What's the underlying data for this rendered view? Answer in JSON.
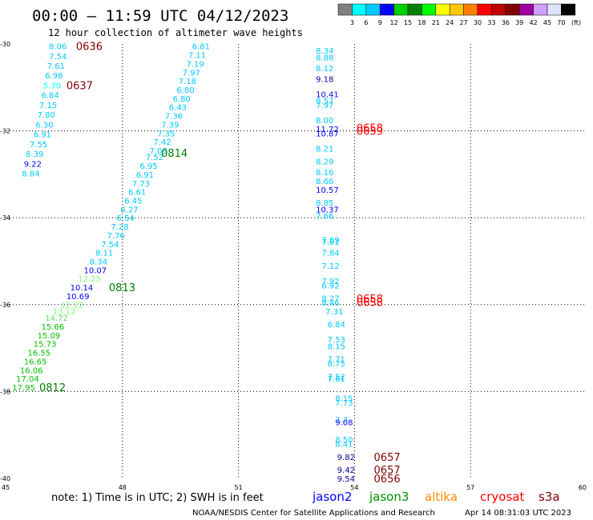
{
  "header": {
    "title": "00:00 – 11:59 UTC 04/12/2023",
    "subtitle": "12 hour collection of altimeter wave heights"
  },
  "legend": {
    "unit": "(ft)",
    "colors": [
      "#808080",
      "#00ffff",
      "#00c8ff",
      "#0000ff",
      "#00d000",
      "#008000",
      "#00ff00",
      "#ffff00",
      "#ffc800",
      "#ff8000",
      "#ff0000",
      "#c00000",
      "#800000",
      "#a000a0",
      "#d0a0ff",
      "#e0e0ff",
      "#000000"
    ],
    "labels": [
      "3",
      "6",
      "9",
      "12",
      "15",
      "18",
      "21",
      "24",
      "27",
      "30",
      "33",
      "36",
      "39",
      "42",
      "45",
      "70"
    ]
  },
  "note": "note:  1) Time is in UTC; 2) SWH is in feet",
  "satellites": [
    {
      "name": "jason2",
      "color": "#0000ff"
    },
    {
      "name": "jason3",
      "color": "#009000"
    },
    {
      "name": "altika",
      "color": "#ff8c00"
    },
    {
      "name": "cryosat",
      "color": "#ff0000"
    },
    {
      "name": "s3a",
      "color": "#800000"
    }
  ],
  "footer": {
    "credit": "NOAA/NESDIS Center for Satellite Applications and Research",
    "timestamp": "Apr 14 08:31:03 UTC 2023"
  },
  "chart_data": {
    "type": "scatter",
    "title": "00:00 – 11:59 UTC 04/12/2023",
    "xlim": [
      45,
      60
    ],
    "ylim": [
      -40,
      -30
    ],
    "xticks": [
      45,
      48,
      51,
      54,
      57,
      60
    ],
    "yticks": [
      -30,
      -32,
      -34,
      -36,
      -38,
      -40
    ],
    "grid": true,
    "points": [
      {
        "x": 46.1,
        "y": -30.05,
        "v": "8.06",
        "c": "#00c8ff"
      },
      {
        "x": 46.1,
        "y": -30.28,
        "v": "7.54",
        "c": "#00c8ff"
      },
      {
        "x": 46.05,
        "y": -30.5,
        "v": "7.61",
        "c": "#00c8ff"
      },
      {
        "x": 46.0,
        "y": -30.72,
        "v": "6.98",
        "c": "#00c8ff"
      },
      {
        "x": 45.95,
        "y": -30.95,
        "v": "5.70",
        "c": "#00ffff"
      },
      {
        "x": 45.9,
        "y": -31.17,
        "v": "6.84",
        "c": "#00c8ff"
      },
      {
        "x": 45.85,
        "y": -31.4,
        "v": "7.15",
        "c": "#00c8ff"
      },
      {
        "x": 45.8,
        "y": -31.62,
        "v": "7.80",
        "c": "#00c8ff"
      },
      {
        "x": 45.75,
        "y": -31.85,
        "v": "6.30",
        "c": "#00c8ff"
      },
      {
        "x": 45.7,
        "y": -32.07,
        "v": "6.91",
        "c": "#00c8ff"
      },
      {
        "x": 45.6,
        "y": -32.3,
        "v": "7.55",
        "c": "#00c8ff"
      },
      {
        "x": 45.5,
        "y": -32.52,
        "v": "8.39",
        "c": "#00c8ff"
      },
      {
        "x": 45.45,
        "y": -32.75,
        "v": "9.22",
        "c": "#0000ff"
      },
      {
        "x": 45.4,
        "y": -32.97,
        "v": "8.84",
        "c": "#00c8ff"
      },
      {
        "x": 49.8,
        "y": -30.05,
        "v": "6.81",
        "c": "#00c8ff"
      },
      {
        "x": 49.7,
        "y": -30.25,
        "v": "7.11",
        "c": "#00c8ff"
      },
      {
        "x": 49.65,
        "y": -30.45,
        "v": "7.19",
        "c": "#00c8ff"
      },
      {
        "x": 49.55,
        "y": -30.65,
        "v": "7.97",
        "c": "#00c8ff"
      },
      {
        "x": 49.45,
        "y": -30.85,
        "v": "7.18",
        "c": "#00c8ff"
      },
      {
        "x": 49.4,
        "y": -31.05,
        "v": "6.80",
        "c": "#00c8ff"
      },
      {
        "x": 49.3,
        "y": -31.25,
        "v": "6.80",
        "c": "#00c8ff"
      },
      {
        "x": 49.2,
        "y": -31.45,
        "v": "6.43",
        "c": "#00c8ff"
      },
      {
        "x": 49.1,
        "y": -31.65,
        "v": "7.36",
        "c": "#00c8ff"
      },
      {
        "x": 49.0,
        "y": -31.85,
        "v": "7.39",
        "c": "#00c8ff"
      },
      {
        "x": 48.9,
        "y": -32.05,
        "v": "7.35",
        "c": "#00c8ff"
      },
      {
        "x": 48.8,
        "y": -32.25,
        "v": "7.42",
        "c": "#00c8ff"
      },
      {
        "x": 48.7,
        "y": -32.45,
        "v": "7.09",
        "c": "#00c8ff"
      },
      {
        "x": 48.6,
        "y": -32.6,
        "v": "7.52",
        "c": "#00c8ff"
      },
      {
        "x": 48.45,
        "y": -32.8,
        "v": "6.95",
        "c": "#00c8ff"
      },
      {
        "x": 48.35,
        "y": -33.0,
        "v": "6.91",
        "c": "#00c8ff"
      },
      {
        "x": 48.25,
        "y": -33.2,
        "v": "7.73",
        "c": "#00c8ff"
      },
      {
        "x": 48.15,
        "y": -33.4,
        "v": "6.61",
        "c": "#00c8ff"
      },
      {
        "x": 48.05,
        "y": -33.6,
        "v": "6.45",
        "c": "#00c8ff"
      },
      {
        "x": 47.95,
        "y": -33.8,
        "v": "6.27",
        "c": "#00c8ff"
      },
      {
        "x": 47.85,
        "y": -34.0,
        "v": "6.54",
        "c": "#00c8ff"
      },
      {
        "x": 47.7,
        "y": -34.2,
        "v": "7.28",
        "c": "#00c8ff"
      },
      {
        "x": 47.6,
        "y": -34.4,
        "v": "7.76",
        "c": "#00c8ff"
      },
      {
        "x": 47.45,
        "y": -34.6,
        "v": "7.54",
        "c": "#00c8ff"
      },
      {
        "x": 47.3,
        "y": -34.8,
        "v": "8.11",
        "c": "#00c8ff"
      },
      {
        "x": 47.15,
        "y": -35.0,
        "v": "8.34",
        "c": "#00c8ff"
      },
      {
        "x": 47.0,
        "y": -35.2,
        "v": "10.07",
        "c": "#0000ff"
      },
      {
        "x": 46.85,
        "y": -35.4,
        "v": "12.25",
        "c": "#80ff80"
      },
      {
        "x": 46.65,
        "y": -35.6,
        "v": "10.14",
        "c": "#0000ff"
      },
      {
        "x": 46.55,
        "y": -35.8,
        "v": "10.69",
        "c": "#0000ff"
      },
      {
        "x": 46.4,
        "y": -36.0,
        "v": "12.22",
        "c": "#80ff80"
      },
      {
        "x": 46.2,
        "y": -36.15,
        "v": "13.12",
        "c": "#80ff80"
      },
      {
        "x": 46.0,
        "y": -36.3,
        "v": "14.72",
        "c": "#60e060"
      },
      {
        "x": 45.9,
        "y": -36.5,
        "v": "15.66",
        "c": "#00c000"
      },
      {
        "x": 45.8,
        "y": -36.7,
        "v": "15.09",
        "c": "#00c000"
      },
      {
        "x": 45.7,
        "y": -36.9,
        "v": "15.73",
        "c": "#00c000"
      },
      {
        "x": 45.55,
        "y": -37.1,
        "v": "16.55",
        "c": "#00c000"
      },
      {
        "x": 45.45,
        "y": -37.3,
        "v": "16.65",
        "c": "#00c000"
      },
      {
        "x": 45.35,
        "y": -37.5,
        "v": "16.06",
        "c": "#00c000"
      },
      {
        "x": 45.25,
        "y": -37.7,
        "v": "17.04",
        "c": "#00c000"
      },
      {
        "x": 45.15,
        "y": -37.9,
        "v": "17.95",
        "c": "#00c000"
      },
      {
        "x": 53.0,
        "y": -30.15,
        "v": "8.34",
        "c": "#00c8ff"
      },
      {
        "x": 53.0,
        "y": -30.3,
        "v": "8.88",
        "c": "#00c8ff"
      },
      {
        "x": 53.0,
        "y": -30.55,
        "v": "8.12",
        "c": "#00c8ff"
      },
      {
        "x": 53.0,
        "y": -30.8,
        "v": "9.18",
        "c": "#0000a0"
      },
      {
        "x": 53.0,
        "y": -31.15,
        "v": "10.41",
        "c": "#0000ff"
      },
      {
        "x": 53.0,
        "y": -31.3,
        "v": "8.57",
        "c": "#00c8ff"
      },
      {
        "x": 53.0,
        "y": -31.4,
        "v": "7.97",
        "c": "#00c8ff"
      },
      {
        "x": 53.0,
        "y": -31.75,
        "v": "8.00",
        "c": "#00c8ff"
      },
      {
        "x": 53.0,
        "y": -31.95,
        "v": "11.72",
        "c": "#0000ff"
      },
      {
        "x": 53.0,
        "y": -32.05,
        "v": "10.87",
        "c": "#0000ff"
      },
      {
        "x": 53.0,
        "y": -32.4,
        "v": "8.21",
        "c": "#00c8ff"
      },
      {
        "x": 53.0,
        "y": -32.7,
        "v": "8.29",
        "c": "#00c8ff"
      },
      {
        "x": 53.0,
        "y": -32.95,
        "v": "8.16",
        "c": "#00c8ff"
      },
      {
        "x": 53.0,
        "y": -33.15,
        "v": "8.66",
        "c": "#00c8ff"
      },
      {
        "x": 53.0,
        "y": -33.35,
        "v": "10.57",
        "c": "#0000ff"
      },
      {
        "x": 53.0,
        "y": -33.65,
        "v": "8.85",
        "c": "#00c8ff"
      },
      {
        "x": 53.0,
        "y": -33.8,
        "v": "10.37",
        "c": "#0000ff"
      },
      {
        "x": 53.0,
        "y": -33.95,
        "v": "7.66",
        "c": "#00c8ff"
      },
      {
        "x": 53.15,
        "y": -34.5,
        "v": "7.89",
        "c": "#00c8ff"
      },
      {
        "x": 53.15,
        "y": -34.55,
        "v": "7.81",
        "c": "#00c8ff"
      },
      {
        "x": 53.15,
        "y": -34.8,
        "v": "7.84",
        "c": "#00c8ff"
      },
      {
        "x": 53.15,
        "y": -35.1,
        "v": "7.12",
        "c": "#00c8ff"
      },
      {
        "x": 53.15,
        "y": -35.45,
        "v": "7.92",
        "c": "#00c8ff"
      },
      {
        "x": 53.15,
        "y": -35.55,
        "v": "6.92",
        "c": "#00c8ff"
      },
      {
        "x": 53.15,
        "y": -35.85,
        "v": "8.27",
        "c": "#00c8ff"
      },
      {
        "x": 53.15,
        "y": -35.95,
        "v": "8.46",
        "c": "#00c8ff"
      },
      {
        "x": 53.25,
        "y": -36.15,
        "v": "7.31",
        "c": "#00c8ff"
      },
      {
        "x": 53.3,
        "y": -36.45,
        "v": "6.84",
        "c": "#00c8ff"
      },
      {
        "x": 53.3,
        "y": -36.8,
        "v": "7.53",
        "c": "#00c8ff"
      },
      {
        "x": 53.3,
        "y": -36.95,
        "v": "8.15",
        "c": "#00c8ff"
      },
      {
        "x": 53.3,
        "y": -37.25,
        "v": "7.71",
        "c": "#00c8ff"
      },
      {
        "x": 53.3,
        "y": -37.35,
        "v": "8.75",
        "c": "#00c8ff"
      },
      {
        "x": 53.3,
        "y": -37.65,
        "v": "7.52",
        "c": "#00c8ff"
      },
      {
        "x": 53.3,
        "y": -37.7,
        "v": "7.61",
        "c": "#00c8ff"
      },
      {
        "x": 53.5,
        "y": -38.15,
        "v": "8.15",
        "c": "#00c8ff"
      },
      {
        "x": 53.5,
        "y": -38.25,
        "v": "7.73",
        "c": "#00c8ff"
      },
      {
        "x": 53.5,
        "y": -38.65,
        "v": "7.7",
        "c": "#00c8ff"
      },
      {
        "x": 53.5,
        "y": -38.7,
        "v": "9.08",
        "c": "#0000ff"
      },
      {
        "x": 53.5,
        "y": -39.1,
        "v": "8.50",
        "c": "#00c8ff"
      },
      {
        "x": 53.5,
        "y": -39.2,
        "v": "8.41",
        "c": "#00c8ff"
      },
      {
        "x": 53.55,
        "y": -39.5,
        "v": "9.82",
        "c": "#0000a0"
      },
      {
        "x": 53.55,
        "y": -39.8,
        "v": "9.42",
        "c": "#0000a0"
      },
      {
        "x": 53.55,
        "y": -40.0,
        "v": "9.54",
        "c": "#0000a0"
      }
    ],
    "time_labels": [
      {
        "x": 46.8,
        "y": -30.05,
        "t": "0636",
        "c": "#800000"
      },
      {
        "x": 46.55,
        "y": -30.95,
        "t": "0637",
        "c": "#800000"
      },
      {
        "x": 49.0,
        "y": -32.5,
        "t": "0814",
        "c": "#008000"
      },
      {
        "x": 47.65,
        "y": -35.6,
        "t": "0813",
        "c": "#008000"
      },
      {
        "x": 45.85,
        "y": -37.9,
        "t": "0812",
        "c": "#008000"
      },
      {
        "x": 54.05,
        "y": -32.0,
        "t": "0659",
        "c": "#ff0000"
      },
      {
        "x": 54.05,
        "y": -31.92,
        "t": "0658",
        "c": "#ff0000"
      },
      {
        "x": 54.05,
        "y": -35.86,
        "t": "0658",
        "c": "#ff0000"
      },
      {
        "x": 54.05,
        "y": -35.94,
        "t": "0658",
        "c": "#ff0000"
      },
      {
        "x": 54.5,
        "y": -39.5,
        "t": "0657",
        "c": "#800000"
      },
      {
        "x": 54.5,
        "y": -39.8,
        "t": "0657",
        "c": "#800000"
      },
      {
        "x": 54.5,
        "y": -40.0,
        "t": "0656",
        "c": "#800000"
      }
    ]
  }
}
